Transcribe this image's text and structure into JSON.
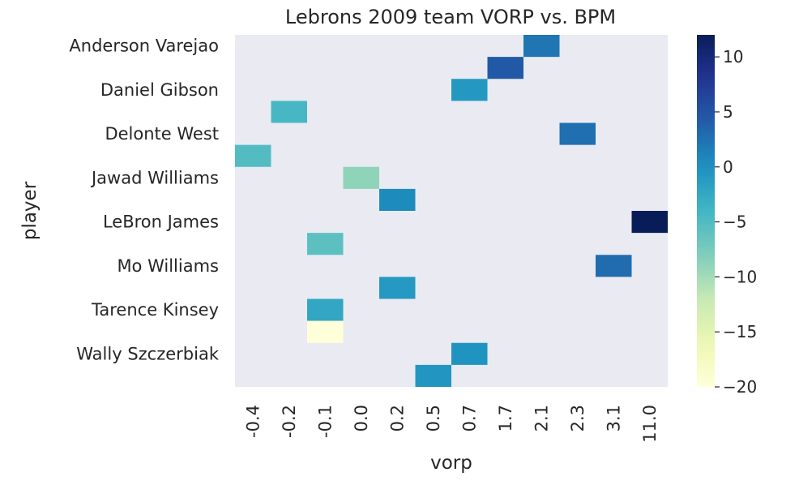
{
  "chart_data": {
    "type": "heatmap",
    "title": "Lebrons 2009 team VORP vs. BPM",
    "xlabel": "vorp",
    "ylabel": "player",
    "x_categories": [
      "-0.4",
      "-0.2",
      "-0.1",
      "0.0",
      "0.2",
      "0.5",
      "0.7",
      "1.7",
      "2.1",
      "2.3",
      "3.1",
      "11.0"
    ],
    "y_tick_labels": [
      "Anderson Varejao",
      "Daniel Gibson",
      "Delonte West",
      "Jawad Williams",
      "LeBron James",
      "Mo Williams",
      "Tarence Kinsey",
      "Wally Szczerbiak"
    ],
    "row_count": 16,
    "cells": [
      {
        "row": 0,
        "col": 8,
        "value": 2.2
      },
      {
        "row": 1,
        "col": 7,
        "value": 4.5
      },
      {
        "row": 2,
        "col": 6,
        "value": -0.8
      },
      {
        "row": 3,
        "col": 1,
        "value": -4.4
      },
      {
        "row": 4,
        "col": 9,
        "value": 2.7
      },
      {
        "row": 5,
        "col": 0,
        "value": -5.1
      },
      {
        "row": 6,
        "col": 3,
        "value": -8.9
      },
      {
        "row": 7,
        "col": 4,
        "value": 0.5
      },
      {
        "row": 8,
        "col": 11,
        "value": 12.0
      },
      {
        "row": 9,
        "col": 2,
        "value": -5.8
      },
      {
        "row": 10,
        "col": 10,
        "value": 2.9
      },
      {
        "row": 11,
        "col": 4,
        "value": -0.9
      },
      {
        "row": 12,
        "col": 2,
        "value": -2.3
      },
      {
        "row": 13,
        "col": 2,
        "value": -20.0
      },
      {
        "row": 14,
        "col": 6,
        "value": -0.3
      },
      {
        "row": 15,
        "col": 5,
        "value": -0.5
      }
    ],
    "colormap": "YlGnBu",
    "color_range": [
      -20,
      12
    ],
    "colorbar_ticks": [
      "10",
      "5",
      "0",
      "−5",
      "−10",
      "−15",
      "−20"
    ],
    "colorbar_tick_values": [
      10,
      5,
      0,
      -5,
      -10,
      -15,
      -20
    ],
    "background_color": "#eaeaf2",
    "grid": false,
    "legend": "colorbar-right"
  }
}
